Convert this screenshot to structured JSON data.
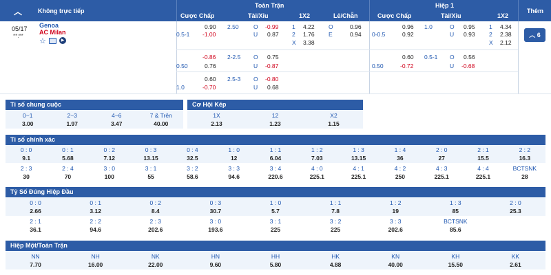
{
  "header": {
    "not_live": "Không trực tiếp",
    "full_match": "Toàn Trận",
    "half1": "Hiệp 1",
    "more": "Thêm",
    "cols_full": [
      "Cược Chấp",
      "Tài/Xỉu",
      "1X2",
      "Lẻ/Chẵn"
    ],
    "cols_half": [
      "Cược Chấp",
      "Tài/Xỉu",
      "1X2"
    ]
  },
  "match": {
    "date": "05/17",
    "time": "**:**",
    "home": "Genoa",
    "away": "AC Milan",
    "more_count": "6"
  },
  "full_rows": [
    {
      "hdp_line": "0.5-1",
      "hdp_home": "0.90",
      "hdp_away": "-1.00",
      "ou_line": "2.50",
      "o_lbl": "O",
      "u_lbl": "U",
      "ou_o": "-0.99",
      "ou_u": "0.87",
      "x12": [
        {
          "k": "1",
          "v": "4.22"
        },
        {
          "k": "2",
          "v": "1.76"
        },
        {
          "k": "X",
          "v": "3.38"
        }
      ],
      "oe": [
        {
          "k": "O",
          "v": "0.96"
        },
        {
          "k": "E",
          "v": "0.94"
        }
      ]
    },
    {
      "hdp_line": "0.50",
      "hdp_home": "-0.86",
      "hdp_away": "0.76",
      "ou_line": "2-2.5",
      "o_lbl": "O",
      "u_lbl": "U",
      "ou_o": "0.75",
      "ou_u": "-0.87"
    },
    {
      "hdp_line": "1.0",
      "hdp_home": "0.60",
      "hdp_away": "-0.70",
      "ou_line": "2.5-3",
      "o_lbl": "O",
      "u_lbl": "U",
      "ou_o": "-0.80",
      "ou_u": "0.68"
    }
  ],
  "half_rows": [
    {
      "hdp_line": "0-0.5",
      "hdp_home": "0.96",
      "hdp_away": "0.92",
      "ou_line": "1.0",
      "o_lbl": "O",
      "u_lbl": "U",
      "ou_o": "0.95",
      "ou_u": "0.93",
      "x12": [
        {
          "k": "1",
          "v": "4.34"
        },
        {
          "k": "2",
          "v": "2.38"
        },
        {
          "k": "X",
          "v": "2.12"
        }
      ]
    },
    {
      "hdp_line": "0.50",
      "hdp_home": "0.60",
      "hdp_away": "-0.72",
      "ou_line": "0.5-1",
      "o_lbl": "O",
      "u_lbl": "U",
      "ou_o": "0.56",
      "ou_u": "-0.68"
    }
  ],
  "final_score": {
    "title": "Tỉ số chung cuộc",
    "items": [
      {
        "l": "0~1",
        "v": "3.00"
      },
      {
        "l": "2~3",
        "v": "1.97"
      },
      {
        "l": "4~6",
        "v": "3.47"
      },
      {
        "l": "7 & Trên",
        "v": "40.00"
      }
    ]
  },
  "double_chance": {
    "title": "Cơ Hội Kép",
    "items": [
      {
        "l": "1X",
        "v": "2.13"
      },
      {
        "l": "12",
        "v": "1.23"
      },
      {
        "l": "X2",
        "v": "1.15"
      }
    ]
  },
  "correct_score": {
    "title": "Tỉ số chính xác",
    "rows": [
      [
        {
          "l": "0 : 0",
          "v": "9.1"
        },
        {
          "l": "0 : 1",
          "v": "5.68"
        },
        {
          "l": "0 : 2",
          "v": "7.12"
        },
        {
          "l": "0 : 3",
          "v": "13.15"
        },
        {
          "l": "0 : 4",
          "v": "32.5"
        },
        {
          "l": "1 : 0",
          "v": "12"
        },
        {
          "l": "1 : 1",
          "v": "6.04"
        },
        {
          "l": "1 : 2",
          "v": "7.03"
        },
        {
          "l": "1 : 3",
          "v": "13.15"
        },
        {
          "l": "1 : 4",
          "v": "36"
        },
        {
          "l": "2 : 0",
          "v": "27"
        },
        {
          "l": "2 : 1",
          "v": "15.5"
        },
        {
          "l": "2 : 2",
          "v": "16.3"
        }
      ],
      [
        {
          "l": "2 : 3",
          "v": "30"
        },
        {
          "l": "2 : 4",
          "v": "70"
        },
        {
          "l": "3 : 0",
          "v": "100"
        },
        {
          "l": "3 : 1",
          "v": "55"
        },
        {
          "l": "3 : 2",
          "v": "58.6"
        },
        {
          "l": "3 : 3",
          "v": "94.6"
        },
        {
          "l": "3 : 4",
          "v": "220.6"
        },
        {
          "l": "4 : 0",
          "v": "225.1"
        },
        {
          "l": "4 : 1",
          "v": "225.1"
        },
        {
          "l": "4 : 2",
          "v": "250"
        },
        {
          "l": "4 : 3",
          "v": "225.1"
        },
        {
          "l": "4 : 4",
          "v": "225.1"
        },
        {
          "l": "BCTSNK",
          "v": "28"
        }
      ]
    ]
  },
  "half_correct": {
    "title": "Tỷ Số Đúng Hiệp Đầu",
    "rows": [
      [
        {
          "l": "0 : 0",
          "v": "2.66"
        },
        {
          "l": "0 : 1",
          "v": "3.12"
        },
        {
          "l": "0 : 2",
          "v": "8.4"
        },
        {
          "l": "0 : 3",
          "v": "30.7"
        },
        {
          "l": "1 : 0",
          "v": "5.7"
        },
        {
          "l": "1 : 1",
          "v": "7.8"
        },
        {
          "l": "1 : 2",
          "v": "19"
        },
        {
          "l": "1 : 3",
          "v": "85"
        },
        {
          "l": "2 : 0",
          "v": "25.3"
        }
      ],
      [
        {
          "l": "2 : 1",
          "v": "36.1"
        },
        {
          "l": "2 : 2",
          "v": "94.6"
        },
        {
          "l": "2 : 3",
          "v": "202.6"
        },
        {
          "l": "3 : 0",
          "v": "193.6"
        },
        {
          "l": "3 : 1",
          "v": "225"
        },
        {
          "l": "3 : 2",
          "v": "225"
        },
        {
          "l": "3 : 3",
          "v": "202.6"
        },
        {
          "l": "BCTSNK",
          "v": "85.6"
        },
        {
          "l": "",
          "v": ""
        }
      ]
    ]
  },
  "ht_ft": {
    "title": "Hiệp Một/Toàn Trận",
    "items": [
      {
        "l": "NN",
        "v": "7.70"
      },
      {
        "l": "NH",
        "v": "16.00"
      },
      {
        "l": "NK",
        "v": "22.00"
      },
      {
        "l": "HN",
        "v": "9.60"
      },
      {
        "l": "HH",
        "v": "5.80"
      },
      {
        "l": "HK",
        "v": "4.88"
      },
      {
        "l": "KN",
        "v": "40.00"
      },
      {
        "l": "KH",
        "v": "15.50"
      },
      {
        "l": "KK",
        "v": "2.61"
      }
    ]
  },
  "colors": {
    "header": "#2d5ca6",
    "label": "#1e56b0",
    "negative": "#d0021b"
  }
}
